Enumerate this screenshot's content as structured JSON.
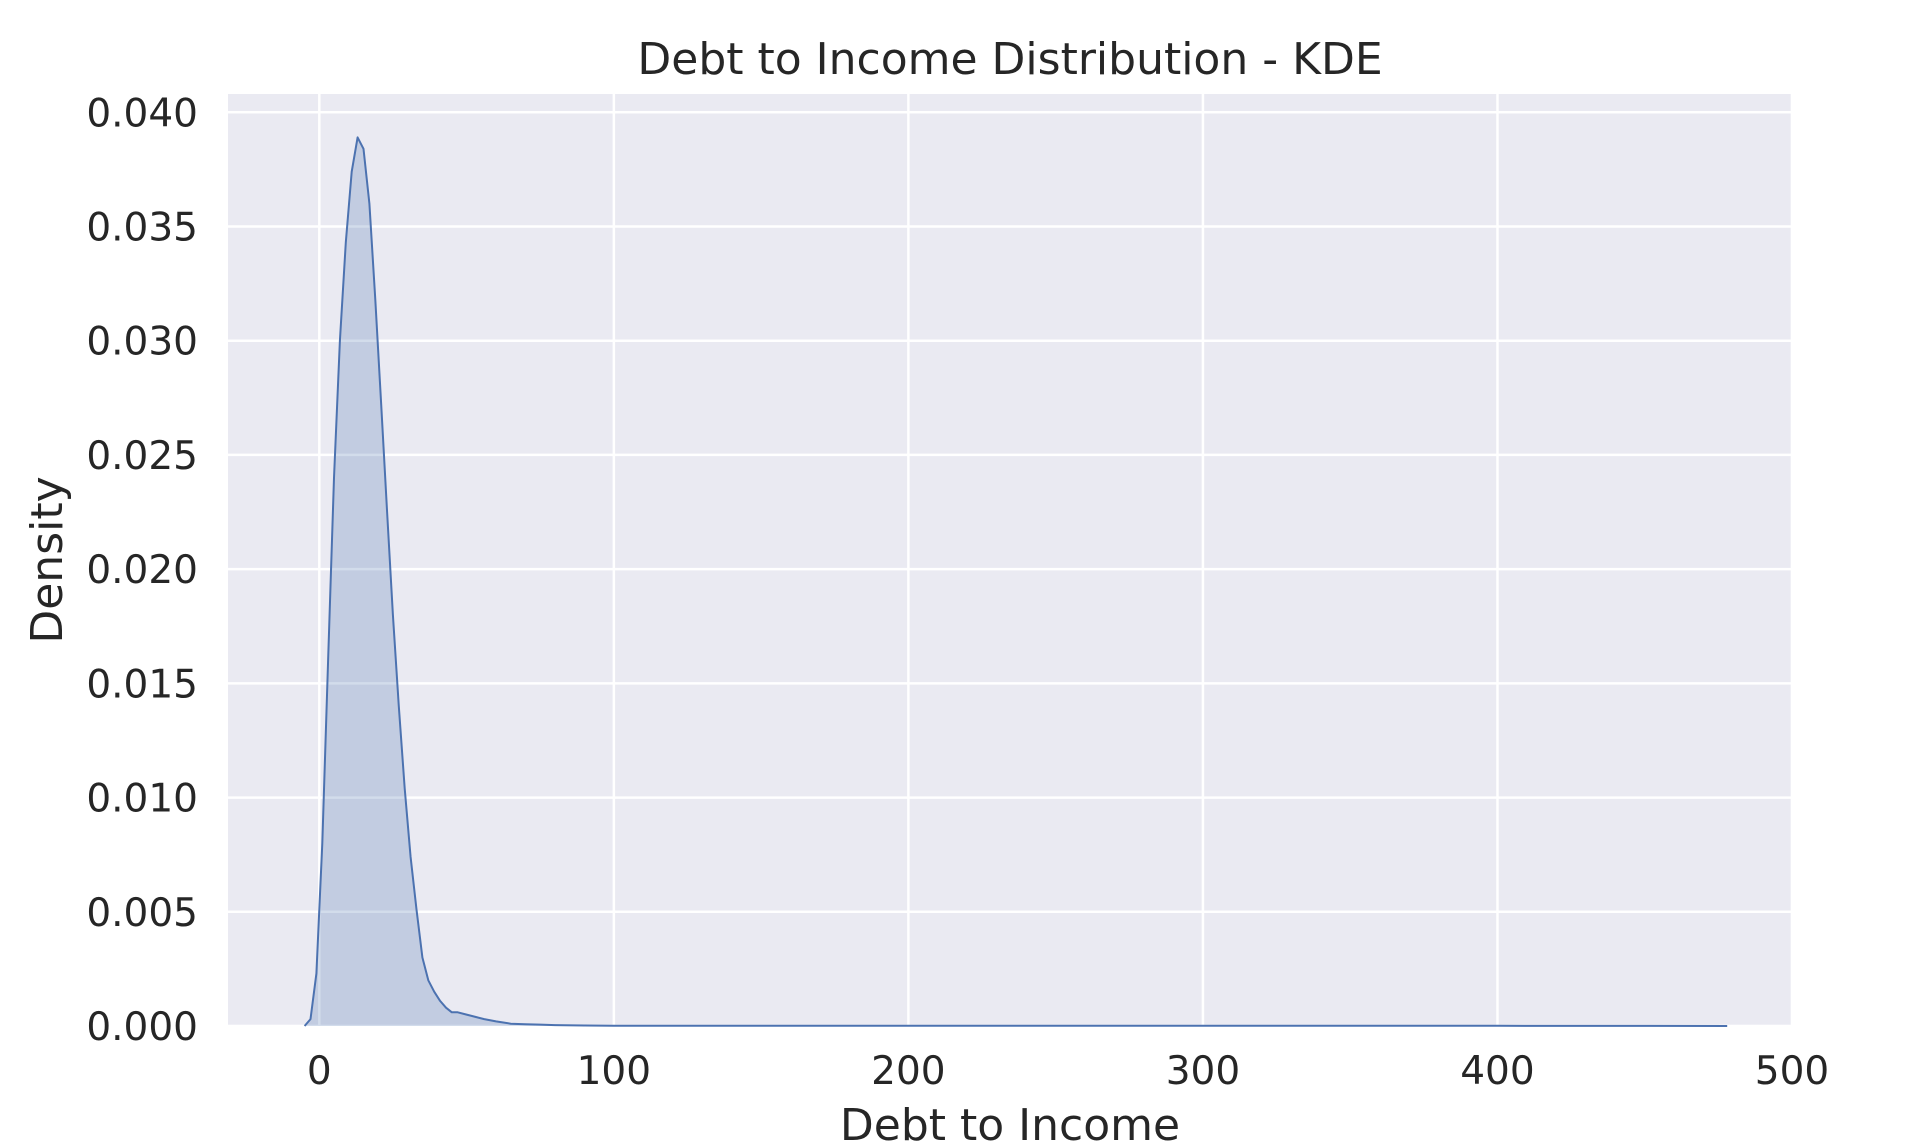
{
  "chart_data": {
    "type": "area",
    "title": "Debt to Income Distribution - KDE",
    "xlabel": "Debt to Income",
    "ylabel": "Density",
    "xlim": [
      -31,
      500
    ],
    "ylim": [
      0,
      0.0408
    ],
    "xticks": [
      0,
      100,
      200,
      300,
      400,
      500
    ],
    "xtick_labels": [
      "0",
      "100",
      "200",
      "300",
      "400",
      "500"
    ],
    "yticks": [
      0.0,
      0.005,
      0.01,
      0.015,
      0.02,
      0.025,
      0.03,
      0.035,
      0.04
    ],
    "ytick_labels": [
      "0.000",
      "0.005",
      "0.010",
      "0.015",
      "0.020",
      "0.025",
      "0.030",
      "0.035",
      "0.040"
    ],
    "grid": true,
    "colors": {
      "background": "#eaeaf2",
      "grid": "#ffffff",
      "line": "#4c72b0",
      "fill": "#4c72b0"
    },
    "series": [
      {
        "x": [
          -5,
          -3,
          -1,
          1,
          3,
          5,
          7,
          9,
          11,
          13,
          15,
          17,
          19,
          21,
          23,
          25,
          27,
          29,
          31,
          33,
          35,
          37,
          39,
          41,
          43,
          45,
          47,
          50,
          53,
          56,
          60,
          65,
          70,
          75,
          80,
          90,
          100,
          120,
          150,
          200,
          300,
          400,
          478
        ],
        "y": [
          0.0,
          0.0003,
          0.0023,
          0.008,
          0.016,
          0.024,
          0.03,
          0.0343,
          0.0374,
          0.0389,
          0.0384,
          0.036,
          0.0318,
          0.0272,
          0.0225,
          0.018,
          0.014,
          0.0104,
          0.0074,
          0.0051,
          0.003,
          0.002,
          0.0015,
          0.0011,
          0.0008,
          0.0006,
          0.0006,
          0.0005,
          0.0004,
          0.0003,
          0.0002,
          0.0001,
          8e-05,
          6e-05,
          4e-05,
          2e-05,
          1e-05,
          1e-05,
          1e-05,
          1e-05,
          1e-05,
          1e-05,
          0.0
        ]
      }
    ]
  }
}
